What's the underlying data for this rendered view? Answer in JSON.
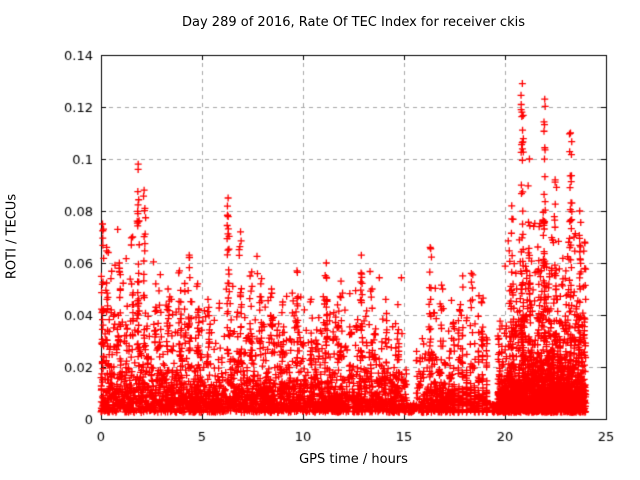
{
  "window": {
    "background": "#ffffff"
  },
  "chart_data": {
    "type": "scatter",
    "title": "Day 289 of 2016, Rate Of TEC Index for receiver ckis",
    "xlabel": "GPS time / hours",
    "ylabel": "ROTI / TECUs",
    "series_name": "ROTI",
    "xlim": [
      0,
      25
    ],
    "ylim": [
      0,
      0.14
    ],
    "xticks": [
      0,
      5,
      10,
      15,
      20,
      25
    ],
    "xtick_labels": [
      "0",
      "5",
      "10",
      "15",
      "20",
      "25"
    ],
    "yticks": [
      0,
      0.02,
      0.04,
      0.06,
      0.08,
      0.1,
      0.12,
      0.14
    ],
    "ytick_labels": [
      "0",
      "0.02",
      "0.04",
      "0.06",
      "0.08",
      "0.1",
      "0.12",
      "0.14"
    ],
    "grid": {
      "visible": true,
      "style": "dashed",
      "color": "#a8a8a8"
    },
    "frame_color": "#000000",
    "text_color": "#000000",
    "legend": "none",
    "marker": {
      "shape": "plus",
      "size": 7,
      "line_width": 1.3,
      "color": "#ff0000"
    },
    "data_t_range": [
      0,
      24
    ],
    "n_base_points": 8200,
    "n_boost_points": 1200,
    "boost_t_range": [
      19.65,
      24
    ],
    "y_floor": 0.0025,
    "band_top_by_hour": [
      0.035,
      0.032,
      0.034,
      0.03,
      0.031,
      0.028,
      0.031,
      0.03,
      0.029,
      0.028,
      0.026,
      0.028,
      0.028,
      0.029,
      0.027,
      0.022,
      0.028,
      0.026,
      0.024,
      0.02,
      0.034,
      0.037,
      0.037,
      0.035
    ],
    "envelope_by_hour": [
      0.065,
      0.055,
      0.075,
      0.048,
      0.058,
      0.045,
      0.065,
      0.06,
      0.048,
      0.052,
      0.044,
      0.055,
      0.05,
      0.058,
      0.044,
      0.038,
      0.055,
      0.042,
      0.048,
      0.038,
      0.07,
      0.08,
      0.075,
      0.07
    ],
    "spikes": [
      {
        "t": 0.08,
        "max": 0.075,
        "n": 18
      },
      {
        "t": 0.3,
        "max": 0.066,
        "n": 12
      },
      {
        "t": 0.9,
        "max": 0.06,
        "n": 14
      },
      {
        "t": 1.55,
        "max": 0.07,
        "n": 12
      },
      {
        "t": 1.85,
        "max": 0.098,
        "n": 30
      },
      {
        "t": 2.15,
        "max": 0.088,
        "n": 20
      },
      {
        "t": 2.7,
        "max": 0.052,
        "n": 10
      },
      {
        "t": 3.3,
        "max": 0.05,
        "n": 10
      },
      {
        "t": 3.9,
        "max": 0.057,
        "n": 12
      },
      {
        "t": 4.35,
        "max": 0.063,
        "n": 15
      },
      {
        "t": 4.8,
        "max": 0.052,
        "n": 10
      },
      {
        "t": 5.3,
        "max": 0.046,
        "n": 8
      },
      {
        "t": 6.3,
        "max": 0.085,
        "n": 22
      },
      {
        "t": 6.9,
        "max": 0.072,
        "n": 18
      },
      {
        "t": 7.4,
        "max": 0.055,
        "n": 10
      },
      {
        "t": 7.9,
        "max": 0.052,
        "n": 10
      },
      {
        "t": 8.45,
        "max": 0.05,
        "n": 10
      },
      {
        "t": 9.0,
        "max": 0.045,
        "n": 8
      },
      {
        "t": 9.7,
        "max": 0.057,
        "n": 12
      },
      {
        "t": 10.4,
        "max": 0.046,
        "n": 8
      },
      {
        "t": 11.15,
        "max": 0.06,
        "n": 12
      },
      {
        "t": 11.9,
        "max": 0.053,
        "n": 10
      },
      {
        "t": 12.9,
        "max": 0.063,
        "n": 18
      },
      {
        "t": 13.4,
        "max": 0.05,
        "n": 8
      },
      {
        "t": 14.1,
        "max": 0.046,
        "n": 8
      },
      {
        "t": 14.7,
        "max": 0.044,
        "n": 8
      },
      {
        "t": 16.3,
        "max": 0.066,
        "n": 14
      },
      {
        "t": 16.9,
        "max": 0.05,
        "n": 8
      },
      {
        "t": 17.8,
        "max": 0.044,
        "n": 6
      },
      {
        "t": 18.35,
        "max": 0.056,
        "n": 8
      },
      {
        "t": 18.85,
        "max": 0.045,
        "n": 6
      },
      {
        "t": 20.35,
        "max": 0.082,
        "n": 20
      },
      {
        "t": 20.85,
        "max": 0.129,
        "n": 45
      },
      {
        "t": 21.2,
        "max": 0.1,
        "n": 25
      },
      {
        "t": 21.95,
        "max": 0.123,
        "n": 40
      },
      {
        "t": 22.5,
        "max": 0.092,
        "n": 20
      },
      {
        "t": 23.25,
        "max": 0.11,
        "n": 35
      },
      {
        "t": 23.7,
        "max": 0.08,
        "n": 18
      },
      {
        "t": 23.95,
        "max": 0.068,
        "n": 12
      }
    ],
    "gaps": [
      {
        "from": 15.15,
        "to": 15.6,
        "keep_below": 0.006
      },
      {
        "from": 19.25,
        "to": 19.65,
        "keep_below": 0.006
      }
    ],
    "column_region": {
      "from": 17.5,
      "to": 19.25,
      "period": 0.2,
      "jitter": 0.045
    }
  }
}
